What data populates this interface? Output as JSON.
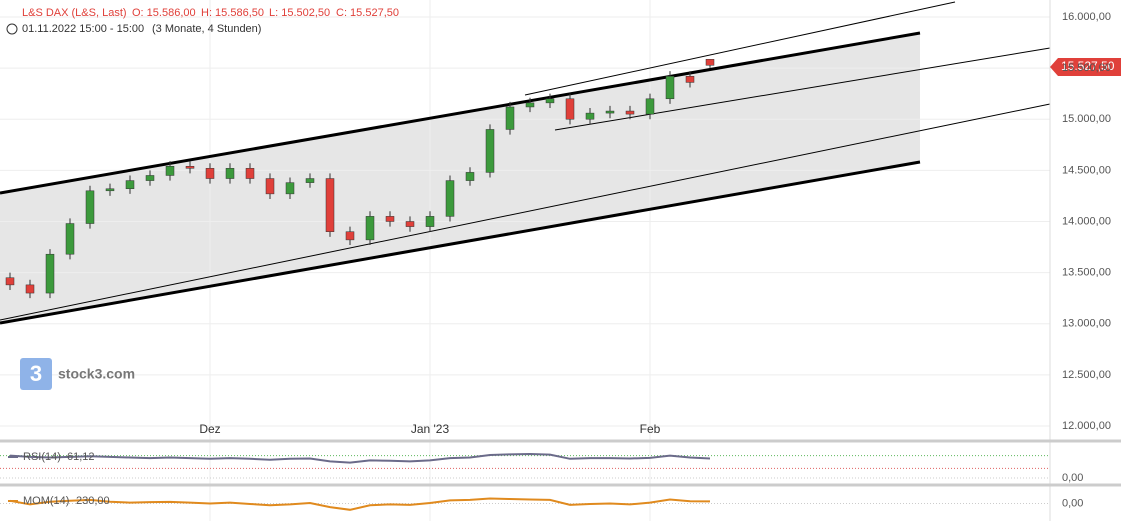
{
  "header": {
    "symbol": "L&S DAX (L&S, Last)",
    "open": "O: 15.586,00",
    "high": "H: 15.586,50",
    "low": "L: 15.502,50",
    "close": "C: 15.527,50",
    "date": "01.11.2022 15:00 - 15:00",
    "period": "(3 Monate, 4 Stunden)",
    "last_price": "15.527,50",
    "watermark": "stock3.com"
  },
  "chart_data": {
    "type": "candlestick",
    "up_color": "#3c9a3c",
    "down_color": "#e0403a",
    "grid": true,
    "categories": [
      null,
      null,
      null,
      null,
      null,
      null,
      null,
      null,
      null,
      null,
      "Dez",
      null,
      null,
      null,
      null,
      null,
      null,
      null,
      null,
      null,
      null,
      "Jan '23",
      null,
      null,
      null,
      null,
      null,
      null,
      null,
      null,
      null,
      null,
      "Feb",
      null,
      null,
      null
    ],
    "open": [
      13450,
      13380,
      13300,
      13680,
      13980,
      14300,
      14320,
      14400,
      14450,
      14540,
      14520,
      14420,
      14520,
      14420,
      14270,
      14380,
      14420,
      13900,
      13820,
      14050,
      14000,
      13950,
      14050,
      14400,
      14480,
      14900,
      15120,
      15160,
      15200,
      15000,
      15060,
      15080,
      15050,
      15200,
      15420,
      15586
    ],
    "high": [
      13500,
      13430,
      13730,
      14030,
      14350,
      14370,
      14450,
      14500,
      14590,
      14590,
      14570,
      14570,
      14570,
      14470,
      14430,
      14470,
      14470,
      13950,
      14100,
      14100,
      14050,
      14100,
      14450,
      14530,
      14950,
      15170,
      15210,
      15250,
      15250,
      15110,
      15130,
      15130,
      15250,
      15470,
      15470,
      15586.5
    ],
    "low": [
      13330,
      13250,
      13250,
      13630,
      13930,
      14250,
      14270,
      14350,
      14400,
      14470,
      14370,
      14370,
      14370,
      14220,
      14220,
      14330,
      13850,
      13770,
      13770,
      13950,
      13900,
      13900,
      14000,
      14350,
      14430,
      14850,
      15070,
      15110,
      14950,
      14950,
      15010,
      15000,
      15000,
      15150,
      15310,
      15502.5
    ],
    "close": [
      13380,
      13300,
      13680,
      13980,
      14300,
      14320,
      14400,
      14450,
      14540,
      14520,
      14420,
      14520,
      14420,
      14270,
      14380,
      14420,
      13900,
      13820,
      14050,
      14000,
      13950,
      14050,
      14400,
      14480,
      14900,
      15120,
      15160,
      15200,
      15000,
      15060,
      15080,
      15050,
      15200,
      15420,
      15360,
      15527.5
    ],
    "ylim": [
      11863,
      16166
    ],
    "yticks": [
      {
        "value": 12000,
        "label": "12.000,00"
      },
      {
        "value": 12500,
        "label": "12.500,00"
      },
      {
        "value": 13000,
        "label": "13.000,00"
      },
      {
        "value": 13500,
        "label": "13.500,00"
      },
      {
        "value": 14000,
        "label": "14.000,00"
      },
      {
        "value": 14500,
        "label": "14.500,00"
      },
      {
        "value": 15000,
        "label": "15.000,00"
      },
      {
        "value": 15500,
        "label": "15.500,00"
      },
      {
        "value": 16000,
        "label": "16.000,00"
      }
    ],
    "indicators": [
      {
        "name": "RSI(14)",
        "value_label": "61,12",
        "color": "#6b6b8a",
        "ylim": [
          0,
          100
        ],
        "yticks": [
          {
            "value": 0,
            "label": "0,00"
          }
        ],
        "levels": [
          70,
          30
        ],
        "values": [
          70,
          66,
          64,
          66,
          68,
          66,
          64,
          62,
          64,
          62,
          60,
          62,
          60,
          57,
          60,
          61,
          52,
          48,
          55,
          54,
          52,
          55,
          62,
          64,
          72,
          74,
          75,
          73,
          60,
          62,
          62,
          61,
          63,
          70,
          64,
          61.12
        ]
      },
      {
        "name": "MOM(14)",
        "value_label": "230,00",
        "color": "#e08a1e",
        "ylim": [
          -1500,
          1500
        ],
        "yticks": [
          {
            "value": 0,
            "label": "0,00"
          }
        ],
        "values": [
          300,
          -100,
          200,
          300,
          400,
          200,
          100,
          150,
          180,
          100,
          0,
          100,
          -50,
          -200,
          -100,
          50,
          -400,
          -700,
          -200,
          -100,
          -150,
          50,
          350,
          400,
          550,
          500,
          450,
          400,
          -150,
          -50,
          0,
          -100,
          100,
          450,
          250,
          230
        ]
      }
    ]
  }
}
